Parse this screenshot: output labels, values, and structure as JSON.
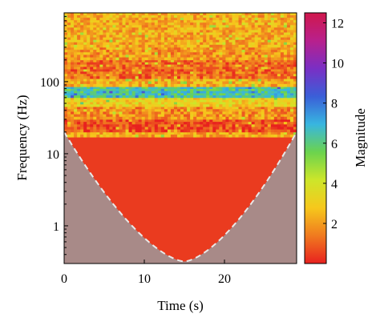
{
  "chart_data": {
    "type": "heatmap",
    "title": "",
    "xlabel": "Time (s)",
    "ylabel": "Frequency (Hz)",
    "xlim": [
      0,
      29
    ],
    "ylim": [
      0.3,
      900
    ],
    "y_scale": "log",
    "x_ticks": [
      {
        "value": 0,
        "label": "0"
      },
      {
        "value": 10,
        "label": "10"
      },
      {
        "value": 20,
        "label": "20"
      }
    ],
    "y_ticks": [
      {
        "value": 1,
        "label": "1"
      },
      {
        "value": 10,
        "label": "10"
      },
      {
        "value": 100,
        "label": "100"
      }
    ],
    "colorbar": {
      "label": "Magnitude",
      "range": [
        0,
        12.5
      ],
      "ticks": [
        {
          "value": 2,
          "label": "2"
        },
        {
          "value": 4,
          "label": "4"
        },
        {
          "value": 6,
          "label": "6"
        },
        {
          "value": 8,
          "label": "8"
        },
        {
          "value": 10,
          "label": "10"
        },
        {
          "value": 12,
          "label": "12"
        }
      ],
      "colors": [
        "#e8211f",
        "#f07a1f",
        "#f6c81c",
        "#cde62a",
        "#6bd34e",
        "#38b6e0",
        "#3a5fd8",
        "#7a2fc4",
        "#b8208c",
        "#d0184c"
      ]
    },
    "cone_of_influence": {
      "center_time": 15,
      "min_frequency": 0.32,
      "edge_frequency": 20,
      "line_color": "#e8e8e8",
      "shade_color": "#a88a88"
    },
    "frequency_bands": [
      {
        "low": 17,
        "high": 20,
        "level": 2.2
      },
      {
        "low": 20,
        "high": 30,
        "level": 0.6
      },
      {
        "low": 30,
        "high": 45,
        "level": 1.8
      },
      {
        "low": 45,
        "high": 60,
        "level": 3.2
      },
      {
        "low": 60,
        "high": 85,
        "level": 6.3
      },
      {
        "low": 85,
        "high": 110,
        "level": 2.4
      },
      {
        "low": 110,
        "high": 200,
        "level": 1.2
      },
      {
        "low": 200,
        "high": 300,
        "level": 1.9
      },
      {
        "low": 300,
        "high": 900,
        "level": 2.3
      }
    ],
    "below_band_level": 0.4
  }
}
